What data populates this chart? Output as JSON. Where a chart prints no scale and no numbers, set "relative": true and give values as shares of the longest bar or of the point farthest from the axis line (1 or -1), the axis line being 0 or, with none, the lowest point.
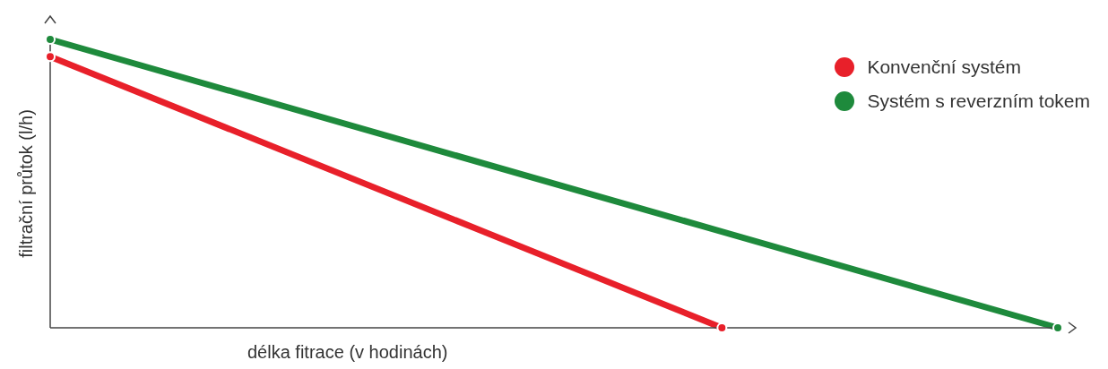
{
  "chart_data": {
    "type": "line",
    "relative": true,
    "xlabel": "délka fitrace (v hodinách)",
    "ylabel": "filtrační průtok (l/h)",
    "categories": [
      null,
      null,
      null,
      null
    ],
    "legend": "top right",
    "marker": "circle",
    "line_style": "solid",
    "grid": false,
    "series": [
      {
        "name": "Konvenční systém",
        "color": "#e8202a",
        "values": [
          0.94,
          null,
          0,
          null
        ]
      },
      {
        "name": "Systém s reverzním tokem",
        "color": "#1e8a3c",
        "values": [
          1,
          null,
          null,
          0
        ]
      }
    ]
  }
}
